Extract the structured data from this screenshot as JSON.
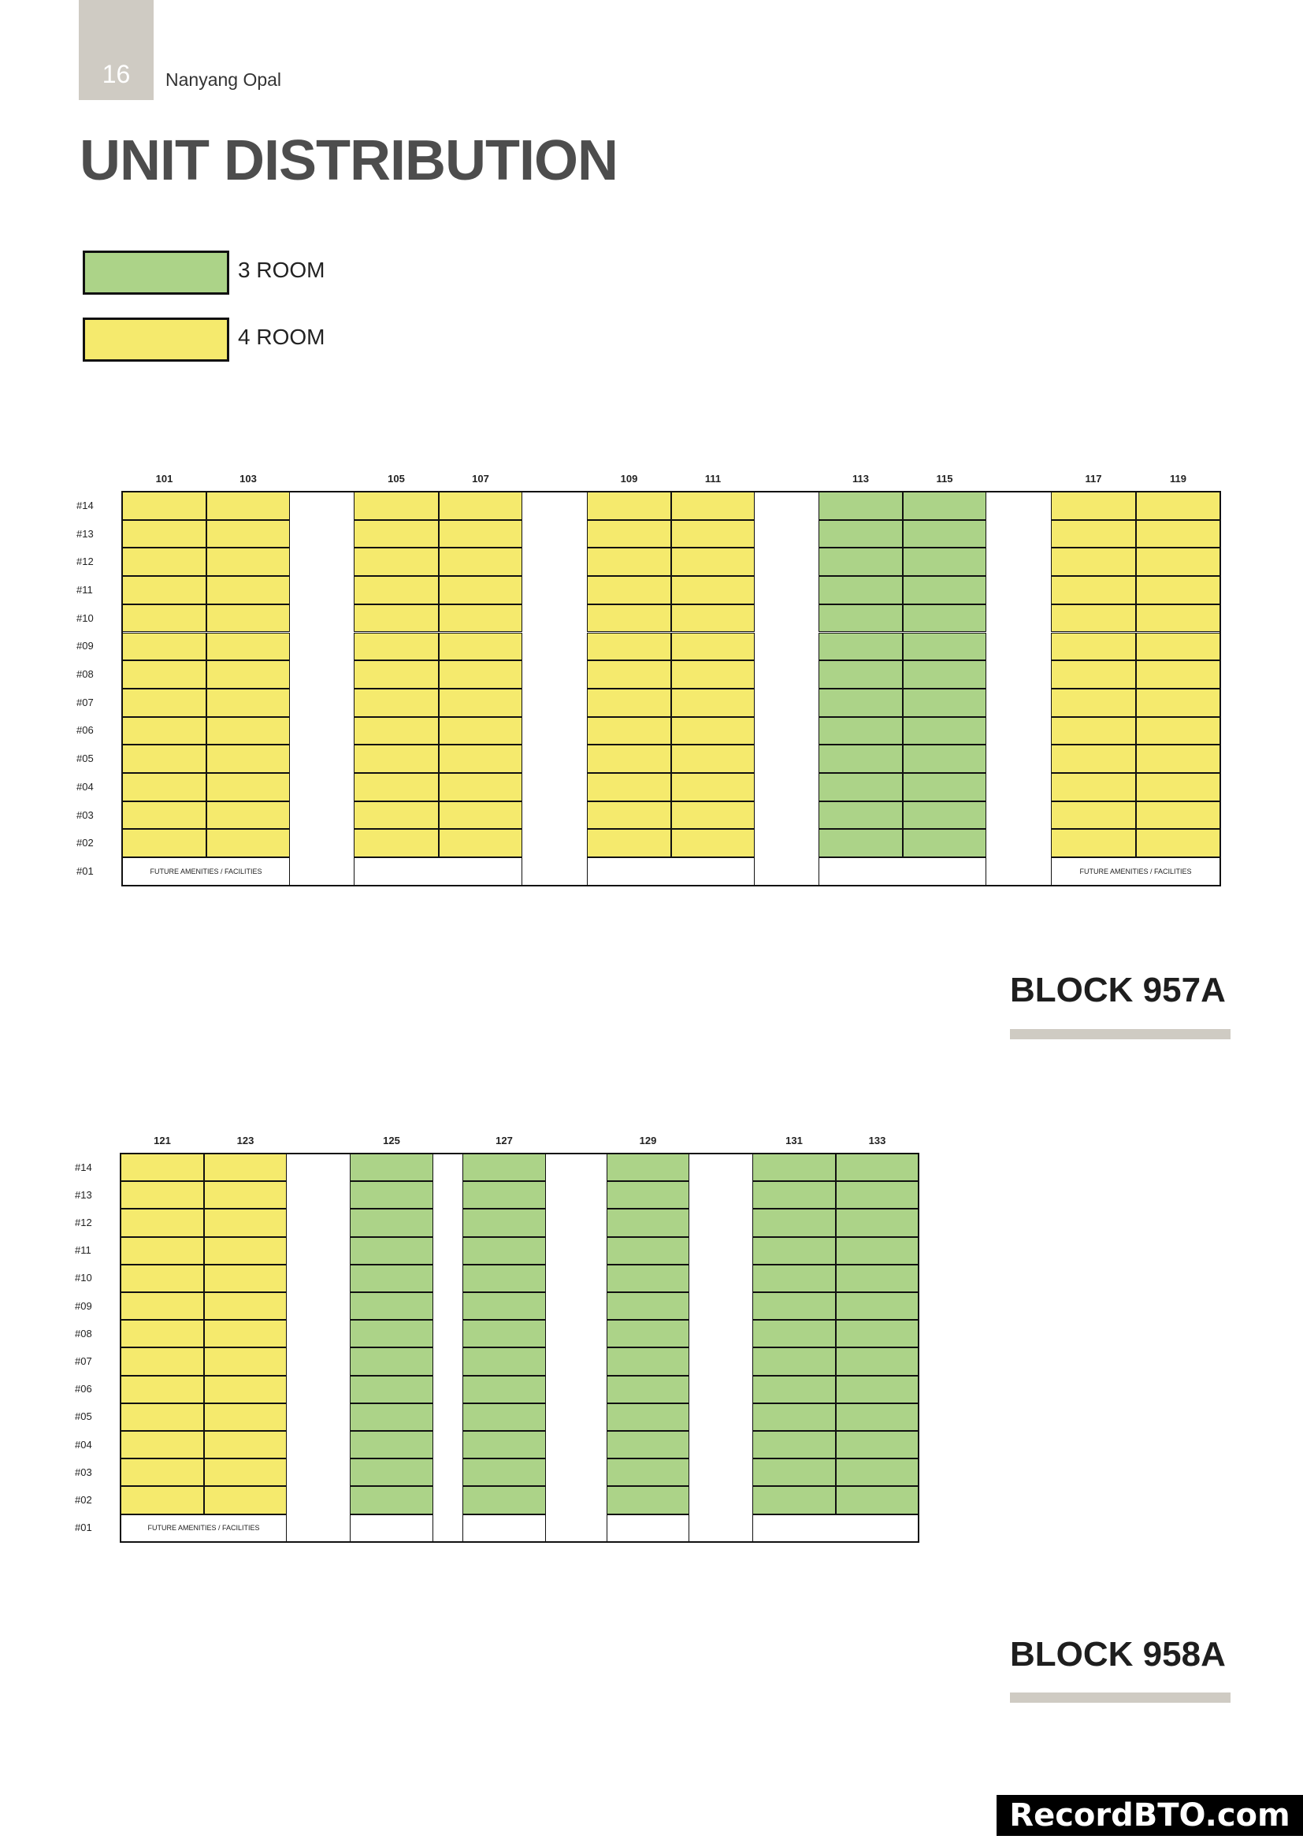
{
  "header": {
    "page_number": "16",
    "document_title": "Nanyang Opal"
  },
  "title": "UNIT DISTRIBUTION",
  "legend": [
    {
      "label": "3 ROOM",
      "color": "#acd388"
    },
    {
      "label": "4 ROOM",
      "color": "#f5ea6d"
    }
  ],
  "colors": {
    "three_room": "#acd388",
    "four_room": "#f5ea6d",
    "accent_bar": "#cfcbc3"
  },
  "floors": [
    "#14",
    "#13",
    "#12",
    "#11",
    "#10",
    "#09",
    "#08",
    "#07",
    "#06",
    "#05",
    "#04",
    "#03",
    "#02",
    "#01"
  ],
  "amenities_label": "FUTURE AMENITIES / FACILITIES",
  "blocks": [
    {
      "name": "BLOCK 957A",
      "stacks": [
        {
          "unit": "101",
          "type": "4 ROOM"
        },
        {
          "unit": "103",
          "type": "4 ROOM"
        },
        {
          "unit": "105",
          "type": "4 ROOM"
        },
        {
          "unit": "107",
          "type": "4 ROOM"
        },
        {
          "unit": "109",
          "type": "4 ROOM"
        },
        {
          "unit": "111",
          "type": "4 ROOM"
        },
        {
          "unit": "113",
          "type": "3 ROOM"
        },
        {
          "unit": "115",
          "type": "3 ROOM"
        },
        {
          "unit": "117",
          "type": "4 ROOM"
        },
        {
          "unit": "119",
          "type": "4 ROOM"
        }
      ]
    },
    {
      "name": "BLOCK 958A",
      "stacks": [
        {
          "unit": "121",
          "type": "4 ROOM"
        },
        {
          "unit": "123",
          "type": "4 ROOM"
        },
        {
          "unit": "125",
          "type": "3 ROOM"
        },
        {
          "unit": "127",
          "type": "3 ROOM"
        },
        {
          "unit": "129",
          "type": "3 ROOM"
        },
        {
          "unit": "131",
          "type": "3 ROOM"
        },
        {
          "unit": "133",
          "type": "3 ROOM"
        }
      ]
    }
  ],
  "watermark": "RecordBTO.com"
}
